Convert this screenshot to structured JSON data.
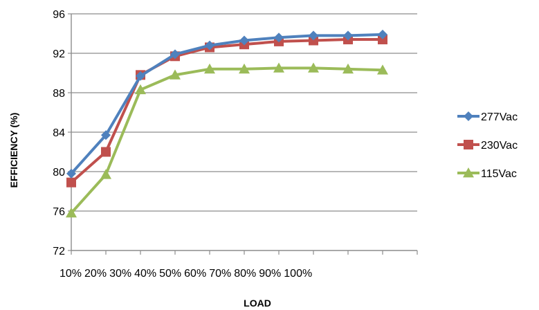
{
  "chart_data": {
    "type": "line",
    "xlabel": "LOAD",
    "ylabel": "EFFICIENCY (%)",
    "ylim": [
      72,
      96
    ],
    "yticks": [
      "72",
      "76",
      "80",
      "84",
      "88",
      "92",
      "96"
    ],
    "categories": [
      "10%",
      "20%",
      "30%",
      "40%",
      "50%",
      "60%",
      "70%",
      "80%",
      "90%",
      "100%"
    ],
    "grid": true,
    "legend_position": "right",
    "series": [
      {
        "name": "277Vac",
        "color": "#4f81bd",
        "marker": "diamond",
        "values": [
          79.8,
          83.7,
          89.7,
          91.9,
          92.8,
          93.3,
          93.6,
          93.8,
          93.8,
          93.9
        ]
      },
      {
        "name": "230Vac",
        "color": "#c0504d",
        "marker": "square",
        "values": [
          78.9,
          82.0,
          89.8,
          91.7,
          92.6,
          92.9,
          93.2,
          93.3,
          93.4,
          93.4
        ]
      },
      {
        "name": "115Vac",
        "color": "#9bbb59",
        "marker": "triangle",
        "values": [
          75.8,
          79.7,
          88.3,
          89.8,
          90.4,
          90.4,
          90.5,
          90.5,
          90.4,
          90.3
        ]
      }
    ]
  }
}
